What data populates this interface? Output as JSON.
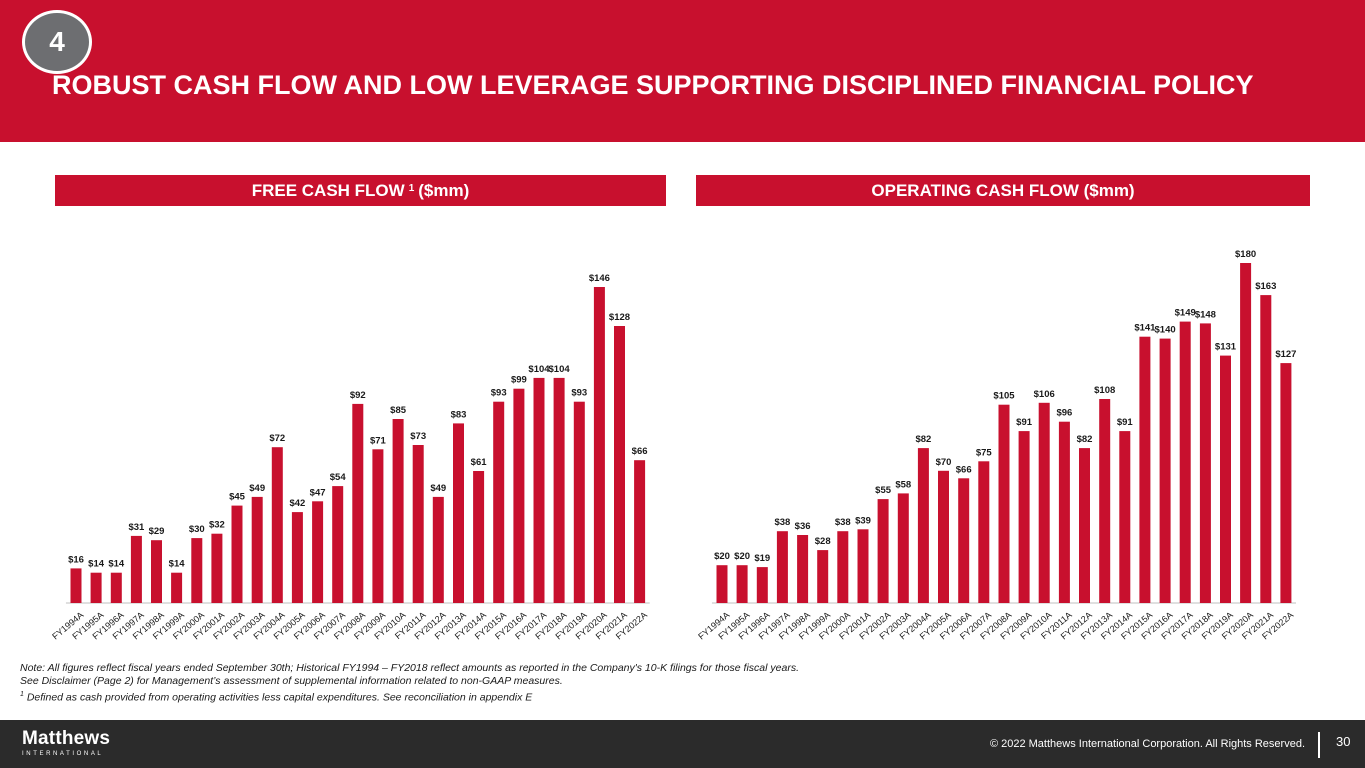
{
  "header": {
    "badge": "4",
    "title": "ROBUST CASH FLOW AND LOW LEVERAGE SUPPORTING DISCIPLINED FINANCIAL POLICY"
  },
  "colors": {
    "brand_red": "#c8102e",
    "badge_gray": "#6d6e71",
    "footer_bg": "#2b2b2b"
  },
  "chart_data": [
    {
      "type": "bar",
      "title": "FREE CASH FLOW",
      "title_superscript": "1",
      "title_unit": "($mm)",
      "categories": [
        "FY1994A",
        "FY1995A",
        "FY1996A",
        "FY1997A",
        "FY1998A",
        "FY1999A",
        "FY2000A",
        "FY2001A",
        "FY2002A",
        "FY2003A",
        "FY2004A",
        "FY2005A",
        "FY2006A",
        "FY2007A",
        "FY2008A",
        "FY2009A",
        "FY2010A",
        "FY2011A",
        "FY2012A",
        "FY2013A",
        "FY2014A",
        "FY2015A",
        "FY2016A",
        "FY2017A",
        "FY2018A",
        "FY2019A",
        "FY2020A",
        "FY2021A",
        "FY2022A"
      ],
      "values": [
        16,
        14,
        14,
        31,
        29,
        14,
        30,
        32,
        45,
        49,
        72,
        42,
        47,
        54,
        92,
        71,
        85,
        73,
        49,
        83,
        61,
        93,
        99,
        104,
        104,
        93,
        146,
        128,
        66
      ],
      "value_prefix": "$",
      "ylim": [
        0,
        146
      ],
      "grid": false,
      "color": "#c8102e"
    },
    {
      "type": "bar",
      "title": "OPERATING CASH FLOW ($mm)",
      "categories": [
        "FY1994A",
        "FY1995A",
        "FY1996A",
        "FY1997A",
        "FY1998A",
        "FY1999A",
        "FY2000A",
        "FY2001A",
        "FY2002A",
        "FY2003A",
        "FY2004A",
        "FY2005A",
        "FY2006A",
        "FY2007A",
        "FY2008A",
        "FY2009A",
        "FY2010A",
        "FY2011A",
        "FY2012A",
        "FY2013A",
        "FY2014A",
        "FY2015A",
        "FY2016A",
        "FY2017A",
        "FY2018A",
        "FY2019A",
        "FY2020A",
        "FY2021A",
        "FY2022A"
      ],
      "values": [
        20,
        20,
        19,
        38,
        36,
        28,
        38,
        39,
        55,
        58,
        82,
        70,
        66,
        75,
        105,
        91,
        106,
        96,
        82,
        108,
        91,
        141,
        140,
        149,
        148,
        131,
        180,
        163,
        127
      ],
      "value_prefix": "$",
      "ylim": [
        0,
        180
      ],
      "grid": false,
      "color": "#c8102e"
    }
  ],
  "notes": {
    "line1": "Note: All figures reflect fiscal years ended September 30th; Historical FY1994 – FY2018 reflect amounts as reported in the Company's 10-K filings for those fiscal years.",
    "line2": "See Disclaimer (Page 2) for Management’s assessment of supplemental information related to non-GAAP measures.",
    "line3_sup": "1",
    "line3": " Defined as cash provided from operating activities less capital expenditures. See reconciliation in appendix E"
  },
  "footer": {
    "logo_main": "Matthews",
    "logo_sub": "INTERNATIONAL",
    "copyright": "© 2022 Matthews International Corporation. All Rights Reserved.",
    "page_number": "30"
  }
}
